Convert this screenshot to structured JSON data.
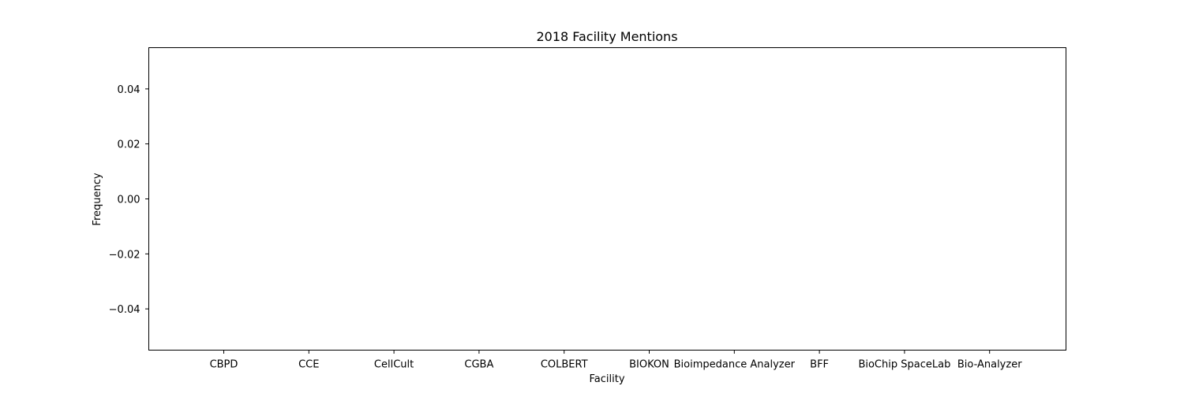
{
  "chart_data": {
    "type": "bar",
    "title": "2018 Facility Mentions",
    "xlabel": "Facility",
    "ylabel": "Frequency",
    "categories": [
      "CBPD",
      "CCE",
      "CellCult",
      "CGBA",
      "COLBERT",
      "BIOKON",
      "Bioimpedance Analyzer",
      "BFF",
      "BioChip SpaceLab",
      "Bio-Analyzer"
    ],
    "values": [
      0,
      0,
      0,
      0,
      0,
      0,
      0,
      0,
      0,
      0
    ],
    "ylim": [
      -0.055,
      0.055
    ],
    "yticks": [
      -0.04,
      -0.02,
      0.0,
      0.02,
      0.04
    ],
    "ytick_labels": [
      "−0.04",
      "−0.02",
      "0.00",
      "0.02",
      "0.04"
    ],
    "grid": false,
    "legend": "none"
  }
}
